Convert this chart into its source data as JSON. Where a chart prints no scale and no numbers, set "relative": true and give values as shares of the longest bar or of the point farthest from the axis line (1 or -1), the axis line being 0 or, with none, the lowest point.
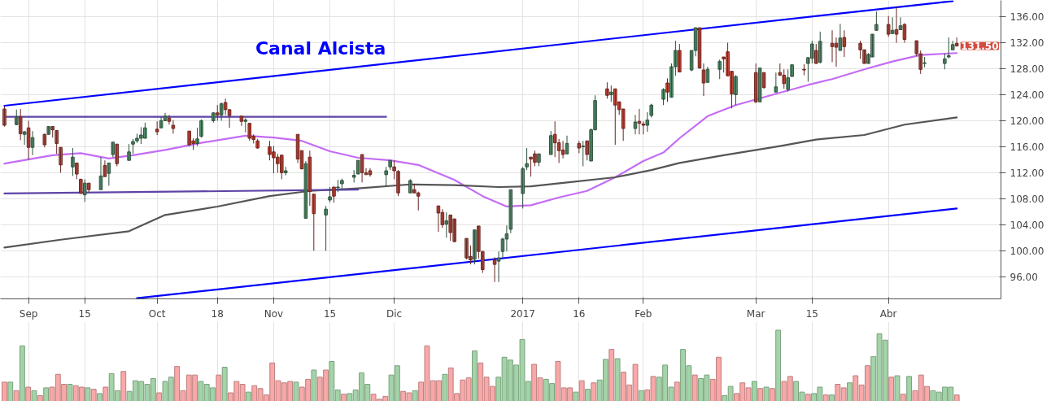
{
  "chart_data": [
    {
      "type": "candlestick",
      "x": [
        "2016-08-26",
        "2016-08-29",
        "2016-08-30",
        "2016-08-31",
        "2016-09-01",
        "2016-09-02",
        "2016-09-05",
        "2016-09-06",
        "2016-09-07",
        "2016-09-08",
        "2016-09-09",
        "2016-09-12",
        "2016-09-13",
        "2016-09-14",
        "2016-09-15",
        "2016-09-16",
        "2016-09-19",
        "2016-09-20",
        "2016-09-21",
        "2016-09-22",
        "2016-09-23",
        "2016-09-26",
        "2016-09-27",
        "2016-09-28",
        "2016-09-29",
        "2016-09-30",
        "2016-10-03",
        "2016-10-04",
        "2016-10-05",
        "2016-10-06",
        "2016-10-07",
        "2016-10-11",
        "2016-10-12",
        "2016-10-13",
        "2016-10-14",
        "2016-10-17",
        "2016-10-18",
        "2016-10-19",
        "2016-10-20",
        "2016-10-21",
        "2016-10-24",
        "2016-10-25",
        "2016-10-26",
        "2016-10-27",
        "2016-10-28",
        "2016-10-31",
        "2016-11-01",
        "2016-11-02",
        "2016-11-03",
        "2016-11-04",
        "2016-11-07",
        "2016-11-08",
        "2016-11-09",
        "2016-11-10",
        "2016-11-11",
        "2016-11-14",
        "2016-11-15",
        "2016-11-16",
        "2016-11-17",
        "2016-11-18",
        "2016-11-21",
        "2016-11-22",
        "2016-11-23",
        "2016-11-24",
        "2016-11-25",
        "2016-11-29",
        "2016-11-30",
        "2016-12-01",
        "2016-12-02",
        "2016-12-05",
        "2016-12-06",
        "2016-12-07",
        "2016-12-12",
        "2016-12-13",
        "2016-12-14",
        "2016-12-15",
        "2016-12-16",
        "2016-12-19",
        "2016-12-20",
        "2016-12-21",
        "2016-12-22",
        "2016-12-23",
        "2016-12-26",
        "2016-12-27",
        "2016-12-28",
        "2016-12-29",
        "2016-12-30",
        "2017-01-02",
        "2017-01-03",
        "2017-01-04",
        "2017-01-05",
        "2017-01-06",
        "2017-01-09",
        "2017-01-10",
        "2017-01-11",
        "2017-01-12",
        "2017-01-13",
        "2017-01-16",
        "2017-01-17",
        "2017-01-18",
        "2017-01-19",
        "2017-01-20",
        "2017-01-23",
        "2017-01-24",
        "2017-01-25",
        "2017-01-26",
        "2017-01-27",
        "2017-01-30",
        "2017-01-31",
        "2017-02-01",
        "2017-02-02",
        "2017-02-03",
        "2017-02-06",
        "2017-02-07",
        "2017-02-08",
        "2017-02-09",
        "2017-02-10",
        "2017-02-13",
        "2017-02-14",
        "2017-02-15",
        "2017-02-16",
        "2017-02-17",
        "2017-02-20",
        "2017-02-21",
        "2017-02-22",
        "2017-02-23",
        "2017-02-24",
        "2017-03-01",
        "2017-03-02",
        "2017-03-03",
        "2017-03-06",
        "2017-03-07",
        "2017-03-08",
        "2017-03-09",
        "2017-03-10",
        "2017-03-13",
        "2017-03-14",
        "2017-03-15",
        "2017-03-16",
        "2017-03-17",
        "2017-03-20",
        "2017-03-21",
        "2017-03-22",
        "2017-03-23",
        "2017-03-27",
        "2017-03-28",
        "2017-03-29",
        "2017-03-30",
        "2017-03-31",
        "2017-04-03",
        "2017-04-04",
        "2017-04-05",
        "2017-04-06",
        "2017-04-07",
        "2017-04-10",
        "2017-04-11",
        "2017-04-12",
        "2017-04-17",
        "2017-04-18",
        "2017-04-19",
        "2017-04-20"
      ],
      "ohlc": [
        [
          121.8,
          122.2,
          119.1,
          119.3
        ],
        [
          119.4,
          121.7,
          119.3,
          120.6
        ],
        [
          120.6,
          121.8,
          117.0,
          118.0
        ],
        [
          117.9,
          118.4,
          116.3,
          118.3
        ],
        [
          118.9,
          120.0,
          114.0,
          115.9
        ],
        [
          115.9,
          118.4,
          114.7,
          117.4
        ],
        [
          117.9,
          118.0,
          115.9,
          116.3
        ],
        [
          117.9,
          119.1,
          117.9,
          119.1
        ],
        [
          119.1,
          119.1,
          117.4,
          118.6
        ],
        [
          118.5,
          118.5,
          114.9,
          116.5
        ],
        [
          115.9,
          115.9,
          112.0,
          113.2
        ],
        [
          112.9,
          115.8,
          111.5,
          114.4
        ],
        [
          113.5,
          113.5,
          111.0,
          111.8
        ],
        [
          111.0,
          111.0,
          108.8,
          108.8
        ],
        [
          108.6,
          111.0,
          107.5,
          110.4
        ],
        [
          110.4,
          110.4,
          109.0,
          109.4
        ],
        [
          109.4,
          114.4,
          109.4,
          111.5
        ],
        [
          113.1,
          113.9,
          111.4,
          111.4
        ],
        [
          111.9,
          113.5,
          110.0,
          113.5
        ],
        [
          114.8,
          116.7,
          114.4,
          116.7
        ],
        [
          116.4,
          116.4,
          113.0,
          113.4
        ],
        [
          113.9,
          116.4,
          113.9,
          115.2
        ],
        [
          116.4,
          117.2,
          114.9,
          116.8
        ],
        [
          116.9,
          118.0,
          116.6,
          117.3
        ],
        [
          117.3,
          119.0,
          116.4,
          117.8
        ],
        [
          117.3,
          119.7,
          117.3,
          118.9
        ],
        [
          118.7,
          119.9,
          117.8,
          118.3
        ],
        [
          118.9,
          120.6,
          118.9,
          120.0
        ],
        [
          120.0,
          121.2,
          120.0,
          120.7
        ],
        [
          120.4,
          120.9,
          119.4,
          119.9
        ],
        [
          119.3,
          120.1,
          118.0,
          118.8
        ],
        [
          118.4,
          118.4,
          116.1,
          116.3
        ],
        [
          116.9,
          117.3,
          115.5,
          116.5
        ],
        [
          116.5,
          118.9,
          116.1,
          117.2
        ],
        [
          117.6,
          120.2,
          117.4,
          120.0
        ],
        [
          120.0,
          121.3,
          119.7,
          121.2
        ],
        [
          121.2,
          122.4,
          120.0,
          120.9
        ],
        [
          120.9,
          122.8,
          120.0,
          122.6
        ],
        [
          122.8,
          123.4,
          120.9,
          121.7
        ],
        [
          121.7,
          121.7,
          118.9,
          120.8
        ],
        [
          120.7,
          120.7,
          119.2,
          119.9
        ],
        [
          119.9,
          120.4,
          118.2,
          120.1
        ],
        [
          119.6,
          119.6,
          116.9,
          117.3
        ],
        [
          117.6,
          117.9,
          116.5,
          117.1
        ],
        [
          116.9,
          117.2,
          115.7,
          115.8
        ],
        [
          116.0,
          116.9,
          113.9,
          114.8
        ],
        [
          115.2,
          116.1,
          111.9,
          114.3
        ],
        [
          114.4,
          114.9,
          112.0,
          113.4
        ],
        [
          114.7,
          114.7,
          111.0,
          112.0
        ],
        [
          112.0,
          112.9,
          111.6,
          112.3
        ],
        [
          117.9,
          117.9,
          113.5,
          114.1
        ],
        [
          115.4,
          115.4,
          112.5,
          112.6
        ],
        [
          105.0,
          113.8,
          105.0,
          113.4
        ],
        [
          114.4,
          115.4,
          106.9,
          109.1
        ],
        [
          108.7,
          108.7,
          100.0,
          105.7
        ],
        [
          105.5,
          106.9,
          100.0,
          106.4
        ],
        [
          107.8,
          109.8,
          107.4,
          108.3
        ],
        [
          109.8,
          109.8,
          107.4,
          108.4
        ],
        [
          109.7,
          110.9,
          109.0,
          109.8
        ],
        [
          110.3,
          111.1,
          109.5,
          110.8
        ],
        [
          111.3,
          112.4,
          110.5,
          111.6
        ],
        [
          111.8,
          113.9,
          111.8,
          113.9
        ],
        [
          114.8,
          114.8,
          110.5,
          112.0
        ],
        [
          112.0,
          112.7,
          111.7,
          111.7
        ],
        [
          112.3,
          112.7,
          111.4,
          111.7
        ],
        [
          111.7,
          112.9,
          110.0,
          112.3
        ],
        [
          112.9,
          113.9,
          112.4,
          113.9
        ],
        [
          112.9,
          113.9,
          111.0,
          112.3
        ],
        [
          112.2,
          112.4,
          108.4,
          108.9
        ],
        [
          108.9,
          111.0,
          108.9,
          110.8
        ],
        [
          109.4,
          110.3,
          108.9,
          108.9
        ],
        [
          108.9,
          109.1,
          106.2,
          108.4
        ],
        [
          106.9,
          106.9,
          102.9,
          105.8
        ],
        [
          105.9,
          106.4,
          103.5,
          104.0
        ],
        [
          104.1,
          105.9,
          102.0,
          104.6
        ],
        [
          105.5,
          105.5,
          101.5,
          102.8
        ],
        [
          104.9,
          104.9,
          101.4,
          101.4
        ],
        [
          101.9,
          101.9,
          98.7,
          98.9
        ],
        [
          99.1,
          100.8,
          97.9,
          98.6
        ],
        [
          98.7,
          103.2,
          97.9,
          103.2
        ],
        [
          103.8,
          103.8,
          98.8,
          99.9
        ],
        [
          99.9,
          99.9,
          96.6,
          97.1
        ],
        [
          98.6,
          99.0,
          95.2,
          97.9
        ],
        [
          98.4,
          99.9,
          95.2,
          98.9
        ],
        [
          99.9,
          102.0,
          98.9,
          101.8
        ],
        [
          101.8,
          103.9,
          99.9,
          102.6
        ],
        [
          103.3,
          109.4,
          102.7,
          109.4
        ],
        [
          108.8,
          112.9,
          106.5,
          112.6
        ],
        [
          112.9,
          115.8,
          112.4,
          113.4
        ],
        [
          114.4,
          114.4,
          111.4,
          114.1
        ],
        [
          114.9,
          115.4,
          113.0,
          113.6
        ],
        [
          113.6,
          114.9,
          113.0,
          114.9
        ],
        [
          114.8,
          118.4,
          114.8,
          117.7
        ],
        [
          117.9,
          119.9,
          114.4,
          116.6
        ],
        [
          116.6,
          117.2,
          113.5,
          115.4
        ],
        [
          115.5,
          116.9,
          114.2,
          114.8
        ],
        [
          114.9,
          117.7,
          114.9,
          116.5
        ],
        [
          116.5,
          116.9,
          115.0,
          115.8
        ],
        [
          116.0,
          116.9,
          113.0,
          116.1
        ],
        [
          116.9,
          116.9,
          113.9,
          114.8
        ],
        [
          113.8,
          118.8,
          113.8,
          118.6
        ],
        [
          118.6,
          123.9,
          118.5,
          123.1
        ],
        [
          124.9,
          125.9,
          123.4,
          123.9
        ],
        [
          124.0,
          125.4,
          122.9,
          124.4
        ],
        [
          124.9,
          124.9,
          116.3,
          122.4
        ],
        [
          122.9,
          122.9,
          120.9,
          121.7
        ],
        [
          121.8,
          121.8,
          116.9,
          118.8
        ],
        [
          118.8,
          120.9,
          117.9,
          119.8
        ],
        [
          119.9,
          121.8,
          117.9,
          119.6
        ],
        [
          119.5,
          119.9,
          117.9,
          119.3
        ],
        [
          119.3,
          121.3,
          118.3,
          120.1
        ],
        [
          120.8,
          122.6,
          120.5,
          122.4
        ],
        [
          123.3,
          125.0,
          122.4,
          124.8
        ],
        [
          125.8,
          126.5,
          122.9,
          124.4
        ],
        [
          123.6,
          128.8,
          123.6,
          128.3
        ],
        [
          128.3,
          132.3,
          126.9,
          130.8
        ],
        [
          130.8,
          131.8,
          127.5,
          127.5
        ],
        [
          127.8,
          130.8,
          127.6,
          130.8
        ],
        [
          130.8,
          134.3,
          129.9,
          134.3
        ],
        [
          134.3,
          134.3,
          128.0,
          128.1
        ],
        [
          127.8,
          128.8,
          123.8,
          125.8
        ],
        [
          125.9,
          128.3,
          125.9,
          127.9
        ],
        [
          127.9,
          129.4,
          126.4,
          129.1
        ],
        [
          129.8,
          129.8,
          127.4,
          129.5
        ],
        [
          130.6,
          132.0,
          126.9,
          126.9
        ],
        [
          127.6,
          127.6,
          121.9,
          124.1
        ],
        [
          124.0,
          127.0,
          122.4,
          126.8
        ],
        [
          127.4,
          128.8,
          122.7,
          122.9
        ],
        [
          122.9,
          128.1,
          122.9,
          128.1
        ],
        [
          127.4,
          127.4,
          124.9,
          125.1
        ],
        [
          124.4,
          127.4,
          124.4,
          125.2
        ],
        [
          127.4,
          128.8,
          126.9,
          127.0
        ],
        [
          127.0,
          127.9,
          124.9,
          125.7
        ],
        [
          124.8,
          127.9,
          124.5,
          126.6
        ],
        [
          126.8,
          128.6,
          126.8,
          128.6
        ],
        [
          127.9,
          128.7,
          127.0,
          127.8
        ],
        [
          128.8,
          129.7,
          126.0,
          129.7
        ],
        [
          129.6,
          132.3,
          128.8,
          131.8
        ],
        [
          130.8,
          131.8,
          128.8,
          128.8
        ],
        [
          129.0,
          133.7,
          128.8,
          132.2
        ],
        [
          131.9,
          133.9,
          129.0,
          131.4
        ],
        [
          131.9,
          132.8,
          128.3,
          131.3
        ],
        [
          130.8,
          134.9,
          130.8,
          132.7
        ],
        [
          132.8,
          133.9,
          129.8,
          131.4
        ],
        [
          131.9,
          132.3,
          129.5,
          130.9
        ],
        [
          130.9,
          130.9,
          128.8,
          128.8
        ],
        [
          128.8,
          130.4,
          128.8,
          130.2
        ],
        [
          129.8,
          133.3,
          129.8,
          133.3
        ],
        [
          133.9,
          136.8,
          133.9,
          134.8
        ],
        [
          134.8,
          136.1,
          132.9,
          133.3
        ],
        [
          133.4,
          135.9,
          133.4,
          133.9
        ],
        [
          134.0,
          137.5,
          132.0,
          133.3
        ],
        [
          134.0,
          135.9,
          134.0,
          134.6
        ],
        [
          134.8,
          135.0,
          132.0,
          132.5
        ],
        [
          132.3,
          132.3,
          129.9,
          130.3
        ],
        [
          130.3,
          130.8,
          127.2,
          127.9
        ],
        [
          128.8,
          129.8,
          128.2,
          128.9
        ],
        [
          128.8,
          130.3,
          127.9,
          129.5
        ],
        [
          129.8,
          132.8,
          129.6,
          130.0
        ],
        [
          130.9,
          132.3,
          130.9,
          131.7
        ],
        [
          131.9,
          132.8,
          131.4,
          131.5
        ]
      ],
      "colors": [
        "#d24c3f",
        "#5b9f77",
        "#d24c3f",
        "#5b9f77",
        "#d24c3f",
        "#5b9f77",
        "#d24c3f",
        "#5b9f77",
        "#d24c3f",
        "#d24c3f",
        "#d24c3f",
        "#5b9f77",
        "#d24c3f",
        "#d24c3f",
        "#5b9f77",
        "#d24c3f",
        "#5b9f77",
        "#d24c3f",
        "#5b9f77",
        "#5b9f77",
        "#d24c3f",
        "#5b9f77",
        "#5b9f77",
        "#5b9f77",
        "#5b9f77",
        "#5b9f77",
        "#d24c3f",
        "#5b9f77",
        "#5b9f77",
        "#d24c3f",
        "#d24c3f",
        "#d24c3f",
        "#d24c3f",
        "#5b9f77",
        "#5b9f77",
        "#5b9f77",
        "#d24c3f",
        "#5b9f77",
        "#d24c3f",
        "#d24c3f",
        "#d24c3f",
        "#5b9f77",
        "#d24c3f",
        "#d24c3f",
        "#d24c3f",
        "#d24c3f",
        "#d24c3f",
        "#d24c3f",
        "#d24c3f",
        "#5b9f77",
        "#d24c3f",
        "#d24c3f",
        "#5b9f77",
        "#d24c3f",
        "#d24c3f",
        "#5b9f77",
        "#5b9f77",
        "#d24c3f",
        "#5b9f77",
        "#5b9f77",
        "#5b9f77",
        "#5b9f77",
        "#d24c3f",
        "#d24c3f",
        "#d24c3f",
        "#5b9f77",
        "#5b9f77",
        "#d24c3f",
        "#d24c3f",
        "#5b9f77",
        "#d24c3f",
        "#d24c3f",
        "#d24c3f",
        "#d24c3f",
        "#5b9f77",
        "#d24c3f",
        "#d24c3f",
        "#d24c3f",
        "#d24c3f",
        "#5b9f77",
        "#d24c3f",
        "#d24c3f",
        "#d24c3f",
        "#5b9f77",
        "#5b9f77",
        "#5b9f77",
        "#5b9f77",
        "#5b9f77",
        "#5b9f77",
        "#d24c3f",
        "#d24c3f",
        "#5b9f77",
        "#5b9f77",
        "#d24c3f",
        "#d24c3f",
        "#d24c3f",
        "#5b9f77",
        "#d24c3f",
        "#5b9f77",
        "#d24c3f",
        "#5b9f77",
        "#5b9f77",
        "#d24c3f",
        "#5b9f77",
        "#d24c3f",
        "#d24c3f",
        "#d24c3f",
        "#5b9f77",
        "#d24c3f",
        "#d24c3f",
        "#5b9f77",
        "#5b9f77",
        "#5b9f77",
        "#d24c3f",
        "#5b9f77",
        "#5b9f77",
        "#d24c3f",
        "#5b9f77",
        "#5b9f77",
        "#d24c3f",
        "#d24c3f",
        "#5b9f77",
        "#5b9f77",
        "#d24c3f",
        "#d24c3f",
        "#d24c3f",
        "#5b9f77",
        "#d24c3f",
        "#5b9f77",
        "#d24c3f",
        "#5b9f77",
        "#d24c3f",
        "#d24c3f",
        "#5b9f77",
        "#5b9f77",
        "#d24c3f",
        "#5b9f77",
        "#5b9f77",
        "#d24c3f",
        "#5b9f77",
        "#d24c3f",
        "#d24c3f",
        "#5b9f77",
        "#d24c3f",
        "#d24c3f",
        "#d24c3f",
        "#5b9f77",
        "#5b9f77",
        "#5b9f77",
        "#d24c3f",
        "#5b9f77",
        "#d24c3f",
        "#5b9f77",
        "#d24c3f",
        "#d24c3f",
        "#d24c3f",
        "#5b9f77",
        "#5b9f77",
        "#5b9f77",
        "#5b9f77",
        "#d24c3f"
      ],
      "series": [
        {
          "type": "line",
          "color": "#c46cf5",
          "x": [
            "2016-08-26",
            "2016-09-07",
            "2016-09-14",
            "2016-09-21",
            "2016-09-27",
            "2016-10-05",
            "2016-10-14",
            "2016-10-25",
            "2016-11-01",
            "2016-11-08",
            "2016-11-15",
            "2016-11-22",
            "2016-11-30",
            "2016-12-07",
            "2016-12-16",
            "2016-12-23",
            "2016-12-29",
            "2017-01-04",
            "2017-01-11",
            "2017-01-18",
            "2017-01-25",
            "2017-02-01",
            "2017-02-06",
            "2017-02-10",
            "2017-02-17",
            "2017-02-24",
            "2017-03-07",
            "2017-03-14",
            "2017-03-20",
            "2017-03-28",
            "2017-04-04",
            "2017-04-11",
            "2017-04-20"
          ],
          "values": [
            113.4,
            114.7,
            115.0,
            114.2,
            114.7,
            115.5,
            116.6,
            117.7,
            117.4,
            116.9,
            115.3,
            114.3,
            113.9,
            113.2,
            110.9,
            108.4,
            106.8,
            107.0,
            108.2,
            109.2,
            111.3,
            113.8,
            115.1,
            117.3,
            120.7,
            122.4,
            124.3,
            125.5,
            126.4,
            127.9,
            129.1,
            130.1,
            130.4
          ]
        },
        {
          "type": "line",
          "color": "#555555",
          "x": [
            "2016-08-26",
            "2016-09-09",
            "2016-09-26",
            "2016-10-05",
            "2016-10-18",
            "2016-10-31",
            "2016-11-10",
            "2016-11-22",
            "2016-12-05",
            "2016-12-16",
            "2016-12-27",
            "2017-01-04",
            "2017-01-13",
            "2017-01-25",
            "2017-02-03",
            "2017-02-10",
            "2017-02-21",
            "2017-03-07",
            "2017-03-16",
            "2017-03-28",
            "2017-04-07",
            "2017-04-20"
          ],
          "values": [
            100.5,
            101.7,
            103.0,
            105.5,
            106.8,
            108.4,
            109.2,
            109.6,
            110.2,
            110.1,
            109.8,
            109.9,
            110.5,
            111.3,
            112.4,
            113.5,
            114.7,
            116.1,
            117.1,
            117.8,
            119.4,
            120.5
          ]
        },
        {
          "type": "line",
          "color": "#0000ff",
          "x": [
            "2016-08-26",
            "2017-04-19"
          ],
          "values": [
            122.3,
            138.4
          ]
        },
        {
          "type": "line",
          "color": "#0000ff",
          "x": [
            "2016-09-28",
            "2017-04-20"
          ],
          "values": [
            92.7,
            106.5
          ]
        },
        {
          "type": "line",
          "color": "#5e44a6",
          "x": [
            "2016-08-26",
            "2016-11-29"
          ],
          "values": [
            120.6,
            120.6
          ]
        },
        {
          "type": "line",
          "color": "#5e44a6",
          "x": [
            "2016-08-26",
            "2016-11-22"
          ],
          "values": [
            108.8,
            109.4
          ]
        }
      ],
      "annotations": [
        "Canal Alcista",
        "131.50"
      ],
      "xlim": [
        "2016-08-25",
        "2017-05-01"
      ],
      "xticks": [
        {
          "value": "2016-09-01",
          "label": "Sep"
        },
        {
          "value": "2016-09-15",
          "label": "15"
        },
        {
          "value": "2016-10-03",
          "label": "Oct"
        },
        {
          "value": "2016-10-18",
          "label": "18"
        },
        {
          "value": "2016-11-01",
          "label": "Nov"
        },
        {
          "value": "2016-11-15",
          "label": "15"
        },
        {
          "value": "2016-12-01",
          "label": "Dic"
        },
        {
          "value": "2017-01-02",
          "label": "2017"
        },
        {
          "value": "2017-01-16",
          "label": "16"
        },
        {
          "value": "2017-02-01",
          "label": "Feb"
        },
        {
          "value": "2017-03-01",
          "label": "Mar"
        },
        {
          "value": "2017-03-15",
          "label": "15"
        },
        {
          "value": "2017-04-03",
          "label": "Abr"
        }
      ],
      "ylim": [
        92.6,
        138.5
      ],
      "yticks": [
        {
          "value": 96,
          "label": "96.00"
        },
        {
          "value": 100,
          "label": "100.00"
        },
        {
          "value": 104,
          "label": "104.00"
        },
        {
          "value": 108,
          "label": "108.00"
        },
        {
          "value": 112,
          "label": "112.00"
        },
        {
          "value": 116,
          "label": "116.00"
        },
        {
          "value": 120,
          "label": "120.00"
        },
        {
          "value": 124,
          "label": "124.00"
        },
        {
          "value": 128,
          "label": "128.00"
        },
        {
          "value": 132,
          "label": "132.00"
        },
        {
          "value": 136,
          "label": "136.00"
        }
      ],
      "grid": true
    },
    {
      "type": "bar",
      "relative": true,
      "grid": "x",
      "categories": [
        null,
        null,
        null,
        null,
        null,
        null,
        null,
        null,
        null,
        null,
        null,
        null,
        null,
        null,
        null,
        null,
        null,
        null,
        null,
        null,
        null,
        null,
        null,
        null,
        null,
        null,
        null,
        null,
        null,
        null,
        null,
        null,
        null,
        null,
        null,
        null,
        null,
        null,
        null,
        null,
        null,
        null,
        null,
        null,
        null,
        null,
        null,
        null,
        null,
        null,
        null,
        null,
        null,
        null,
        null,
        null,
        null,
        null,
        null,
        null,
        null,
        null,
        null,
        null,
        null,
        null,
        null,
        null,
        null,
        null,
        null,
        null,
        null,
        null,
        null,
        null,
        null,
        null,
        null,
        null,
        null,
        null,
        null,
        null,
        null,
        null,
        null,
        null,
        null,
        null,
        null,
        null,
        null,
        null,
        null,
        null,
        null,
        null,
        null,
        null,
        null,
        null,
        null,
        null,
        null,
        null,
        null,
        null,
        null,
        null,
        null,
        null,
        null,
        null,
        null,
        null,
        null,
        null,
        null,
        null,
        null,
        null,
        null,
        null,
        null,
        null,
        null,
        null,
        null,
        null,
        null,
        null,
        null,
        null,
        null,
        null,
        null,
        null,
        null,
        null,
        null,
        null,
        null,
        null,
        null,
        null,
        null,
        null,
        null,
        null,
        null,
        null,
        null,
        null,
        null,
        null,
        null,
        null,
        null,
        null,
        null
      ],
      "values": [
        0.27,
        0.27,
        0.15,
        0.78,
        0.2,
        0.15,
        0.08,
        0.19,
        0.2,
        0.38,
        0.24,
        0.24,
        0.22,
        0.2,
        0.19,
        0.17,
        0.11,
        0.2,
        0.39,
        0.15,
        0.42,
        0.14,
        0.29,
        0.28,
        0.24,
        0.32,
        0.12,
        0.28,
        0.34,
        0.49,
        0.15,
        0.37,
        0.37,
        0.28,
        0.24,
        0.19,
        0.37,
        0.48,
        0.12,
        0.28,
        0.24,
        0.13,
        0.22,
        0.18,
        0.09,
        0.54,
        0.29,
        0.26,
        0.28,
        0.27,
        0.2,
        0.31,
        0.44,
        0.34,
        0.44,
        0.56,
        0.16,
        0.1,
        0.11,
        0.16,
        0.4,
        0.24,
        0.1,
        0.03,
        0.07,
        0.37,
        0.5,
        0.14,
        0.12,
        0.15,
        0.27,
        0.78,
        0.29,
        0.29,
        0.38,
        0.47,
        0.11,
        0.3,
        0.33,
        0.71,
        0.54,
        0.34,
        0.21,
        0.34,
        0.62,
        0.58,
        0.51,
        0.87,
        0.28,
        0.52,
        0.33,
        0.31,
        0.25,
        0.56,
        0.19,
        0.19,
        0.13,
        0.29,
        0.17,
        0.26,
        0.3,
        0.59,
        0.73,
        0.6,
        0.41,
        0.23,
        0.52,
        0.15,
        0.16,
        0.35,
        0.34,
        0.51,
        0.2,
        0.27,
        0.73,
        0.5,
        0.37,
        0.32,
        0.37,
        0.31,
        0.62,
        0.08,
        0.21,
        0.11,
        0.26,
        0.19,
        0.28,
        0.18,
        0.2,
        0.18,
        1,
        0.28,
        0.35,
        0.28,
        0.13,
        0.1,
        0.11,
        0.2,
        0.09,
        0.09,
        0.24,
        0.19,
        0.26,
        0.36,
        0.23,
        0.5,
        0.63,
        0.95,
        0.86,
        0.34,
        0.36,
        0.1,
        0.35,
        0.15,
        0.37,
        0.21,
        0.15,
        0.13,
        0.2,
        0.2,
        0.09
      ],
      "colors": [
        "#f9a8a8",
        "#a3d4a8",
        "#f9a8a8",
        "#a3d4a8",
        "#f9a8a8",
        "#a3d4a8",
        "#f9a8a8",
        "#a3d4a8",
        "#f9a8a8",
        "#f9a8a8",
        "#f9a8a8",
        "#a3d4a8",
        "#f9a8a8",
        "#f9a8a8",
        "#a3d4a8",
        "#f9a8a8",
        "#a3d4a8",
        "#f9a8a8",
        "#a3d4a8",
        "#a3d4a8",
        "#f9a8a8",
        "#a3d4a8",
        "#a3d4a8",
        "#a3d4a8",
        "#a3d4a8",
        "#a3d4a8",
        "#f9a8a8",
        "#a3d4a8",
        "#a3d4a8",
        "#f9a8a8",
        "#f9a8a8",
        "#f9a8a8",
        "#f9a8a8",
        "#a3d4a8",
        "#a3d4a8",
        "#a3d4a8",
        "#f9a8a8",
        "#a3d4a8",
        "#f9a8a8",
        "#f9a8a8",
        "#f9a8a8",
        "#a3d4a8",
        "#f9a8a8",
        "#f9a8a8",
        "#f9a8a8",
        "#f9a8a8",
        "#f9a8a8",
        "#f9a8a8",
        "#f9a8a8",
        "#a3d4a8",
        "#f9a8a8",
        "#f9a8a8",
        "#a3d4a8",
        "#f9a8a8",
        "#f9a8a8",
        "#a3d4a8",
        "#a3d4a8",
        "#f9a8a8",
        "#a3d4a8",
        "#a3d4a8",
        "#a3d4a8",
        "#a3d4a8",
        "#f9a8a8",
        "#f9a8a8",
        "#f9a8a8",
        "#a3d4a8",
        "#a3d4a8",
        "#f9a8a8",
        "#f9a8a8",
        "#a3d4a8",
        "#f9a8a8",
        "#f9a8a8",
        "#f9a8a8",
        "#f9a8a8",
        "#a3d4a8",
        "#f9a8a8",
        "#f9a8a8",
        "#f9a8a8",
        "#f9a8a8",
        "#a3d4a8",
        "#f9a8a8",
        "#f9a8a8",
        "#f9a8a8",
        "#a3d4a8",
        "#a3d4a8",
        "#a3d4a8",
        "#a3d4a8",
        "#a3d4a8",
        "#a3d4a8",
        "#f9a8a8",
        "#f9a8a8",
        "#a3d4a8",
        "#a3d4a8",
        "#f9a8a8",
        "#f9a8a8",
        "#f9a8a8",
        "#a3d4a8",
        "#f9a8a8",
        "#a3d4a8",
        "#f9a8a8",
        "#a3d4a8",
        "#a3d4a8",
        "#f9a8a8",
        "#a3d4a8",
        "#f9a8a8",
        "#f9a8a8",
        "#f9a8a8",
        "#a3d4a8",
        "#f9a8a8",
        "#f9a8a8",
        "#a3d4a8",
        "#a3d4a8",
        "#a3d4a8",
        "#f9a8a8",
        "#a3d4a8",
        "#a3d4a8",
        "#f9a8a8",
        "#a3d4a8",
        "#a3d4a8",
        "#f9a8a8",
        "#f9a8a8",
        "#a3d4a8",
        "#a3d4a8",
        "#f9a8a8",
        "#f9a8a8",
        "#f9a8a8",
        "#a3d4a8",
        "#f9a8a8",
        "#a3d4a8",
        "#f9a8a8",
        "#a3d4a8",
        "#f9a8a8",
        "#f9a8a8",
        "#a3d4a8",
        "#a3d4a8",
        "#f9a8a8",
        "#a3d4a8",
        "#a3d4a8",
        "#f9a8a8",
        "#a3d4a8",
        "#f9a8a8",
        "#f9a8a8",
        "#a3d4a8",
        "#f9a8a8",
        "#f9a8a8",
        "#f9a8a8",
        "#a3d4a8",
        "#a3d4a8",
        "#a3d4a8",
        "#f9a8a8",
        "#a3d4a8",
        "#f9a8a8",
        "#a3d4a8",
        "#f9a8a8",
        "#f9a8a8",
        "#f9a8a8",
        "#a3d4a8",
        "#a3d4a8",
        "#a3d4a8",
        "#a3d4a8",
        "#f9a8a8"
      ]
    }
  ]
}
